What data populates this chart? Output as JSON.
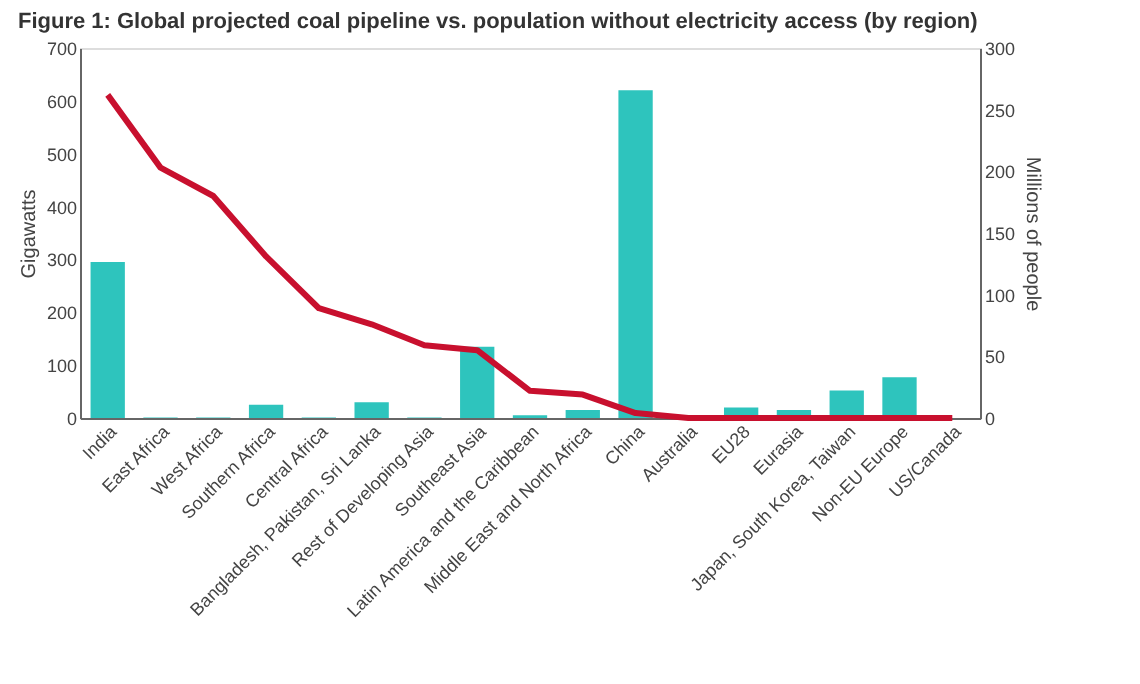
{
  "chart_data": {
    "type": "bar",
    "title": "Figure 1: Global projected coal pipeline vs. population without electricity access (by region)",
    "categories": [
      "India",
      "East Africa",
      "West Africa",
      "Southern Africa",
      "Central Africa",
      "Bangladesh, Pakistan, Sri Lanka",
      "Rest of Developing Asia",
      "Southeast Asia",
      "Latin America and the Caribbean",
      "Middle East and North Africa",
      "China",
      "Australia",
      "EU28",
      "Eurasia",
      "Japan, South Korea, Taiwan",
      "Non-EU Europe",
      "US/Canada"
    ],
    "series": [
      {
        "color": "#2ec4bd",
        "values": [
          295,
          1,
          1,
          25,
          1,
          30,
          1,
          135,
          5,
          15,
          620,
          0,
          20,
          15,
          52,
          77,
          0
        ]
      },
      {
        "type": "line",
        "axis": "y2",
        "color": "#c8102e",
        "values": [
          262,
          203,
          180,
          131,
          89,
          76,
          59,
          55,
          22,
          19,
          4,
          0,
          0,
          0,
          0,
          0,
          0
        ]
      }
    ],
    "ylabel": "Gigawatts",
    "y2label": "Millions of people",
    "ylim": [
      0,
      700
    ],
    "yticks": [
      0,
      100,
      200,
      300,
      400,
      500,
      600,
      700
    ],
    "y2lim": [
      0,
      300
    ],
    "y2ticks": [
      0,
      50,
      100,
      150,
      200,
      250,
      300
    ],
    "grid": false,
    "marker": "none",
    "line_style": "solid"
  }
}
